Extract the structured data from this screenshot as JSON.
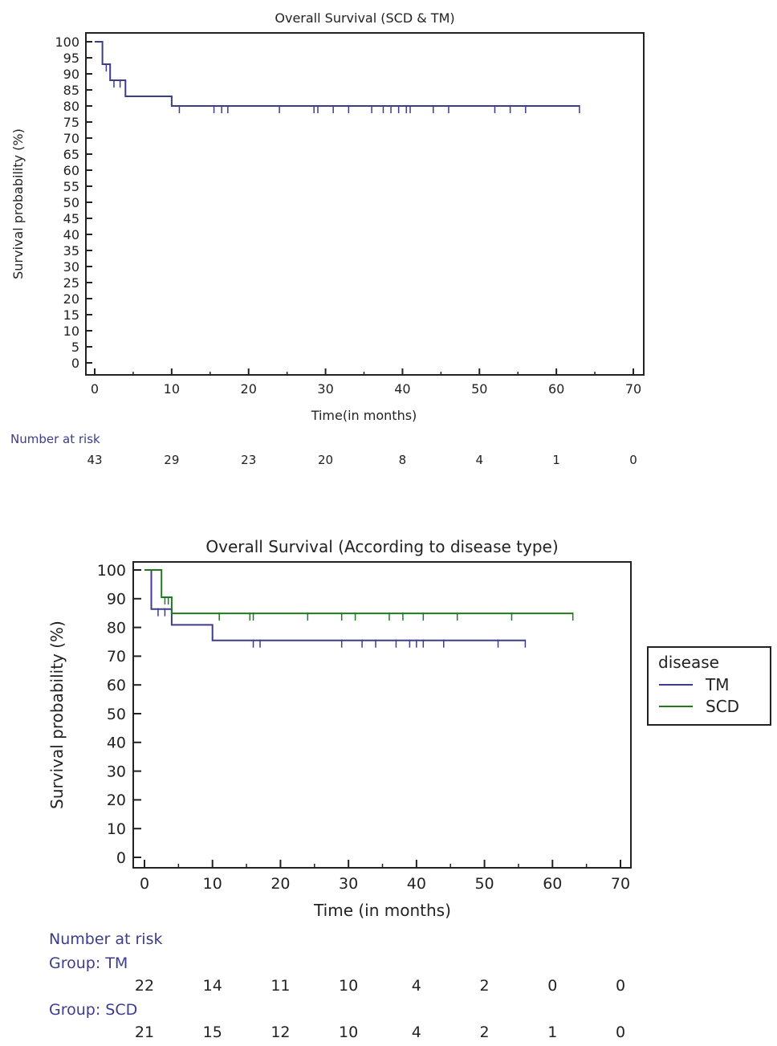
{
  "chart_data": [
    {
      "type": "line",
      "chart_kind": "kaplan-meier",
      "title": "Overall Survival (SCD & TM)",
      "xlabel": "Time(in months)",
      "ylabel": "Survival probability (%)",
      "xlim": [
        0,
        70
      ],
      "ylim": [
        0,
        100
      ],
      "x_ticks": [
        0,
        10,
        20,
        30,
        40,
        50,
        60,
        70
      ],
      "y_ticks": [
        0,
        5,
        10,
        15,
        20,
        25,
        30,
        35,
        40,
        45,
        50,
        55,
        60,
        65,
        70,
        75,
        80,
        85,
        90,
        95,
        100
      ],
      "grid": false,
      "series": [
        {
          "color": "#3c3c8c",
          "steps": [
            [
              0,
              100
            ],
            [
              1,
              100
            ],
            [
              1,
              93
            ],
            [
              2,
              93
            ],
            [
              2,
              88
            ],
            [
              4,
              88
            ],
            [
              4,
              83
            ],
            [
              10,
              83
            ],
            [
              10,
              80
            ],
            [
              63,
              80
            ]
          ],
          "censored": [
            [
              1.5,
              93
            ],
            [
              2.5,
              88
            ],
            [
              3.3,
              88
            ],
            [
              11,
              80
            ],
            [
              15.5,
              80
            ],
            [
              16.5,
              80
            ],
            [
              17.3,
              80
            ],
            [
              24,
              80
            ],
            [
              28.5,
              80
            ],
            [
              29,
              80
            ],
            [
              31,
              80
            ],
            [
              33,
              80
            ],
            [
              36,
              80
            ],
            [
              37.5,
              80
            ],
            [
              38.5,
              80
            ],
            [
              39.5,
              80
            ],
            [
              40.5,
              80
            ],
            [
              41,
              80
            ],
            [
              44,
              80
            ],
            [
              46,
              80
            ],
            [
              52,
              80
            ],
            [
              54,
              80
            ],
            [
              56,
              80
            ],
            [
              63,
              80
            ]
          ]
        }
      ],
      "risk_table": {
        "title": "Number at risk",
        "times": [
          0,
          10,
          20,
          30,
          40,
          50,
          60,
          70
        ],
        "rows": [
          {
            "label": "",
            "values": [
              "43",
              "29",
              "23",
              "20",
              "8",
              "4",
              "1",
              "0"
            ]
          }
        ]
      }
    },
    {
      "type": "line",
      "chart_kind": "kaplan-meier",
      "title": "Overall Survival (According to disease type)",
      "xlabel": "Time (in months)",
      "ylabel": "Survival probability (%)",
      "xlim": [
        0,
        70
      ],
      "ylim": [
        0,
        100
      ],
      "x_ticks": [
        0,
        10,
        20,
        30,
        40,
        50,
        60,
        70
      ],
      "y_ticks": [
        0,
        10,
        20,
        30,
        40,
        50,
        60,
        70,
        80,
        90,
        100
      ],
      "grid": false,
      "legend": {
        "title": "disease",
        "position": "right"
      },
      "series": [
        {
          "name": "TM",
          "color": "#3c3c8c",
          "steps": [
            [
              0,
              100
            ],
            [
              1,
              100
            ],
            [
              1,
              86.4
            ],
            [
              4,
              86.4
            ],
            [
              4,
              80.9
            ],
            [
              10,
              80.9
            ],
            [
              10,
              75.5
            ],
            [
              56,
              75.5
            ]
          ],
          "censored": [
            [
              2,
              86.4
            ],
            [
              3,
              86.4
            ],
            [
              16,
              75.5
            ],
            [
              17,
              75.5
            ],
            [
              29,
              75.5
            ],
            [
              32,
              75.5
            ],
            [
              34,
              75.5
            ],
            [
              37,
              75.5
            ],
            [
              39,
              75.5
            ],
            [
              40,
              75.5
            ],
            [
              41,
              75.5
            ],
            [
              44,
              75.5
            ],
            [
              52,
              75.5
            ],
            [
              56,
              75.5
            ]
          ]
        },
        {
          "name": "SCD",
          "color": "#1e7c1e",
          "steps": [
            [
              0,
              100
            ],
            [
              2.5,
              100
            ],
            [
              2.5,
              90.5
            ],
            [
              4,
              90.5
            ],
            [
              4,
              84.9
            ],
            [
              63,
              84.9
            ]
          ],
          "censored": [
            [
              3,
              90.5
            ],
            [
              3.5,
              90.5
            ],
            [
              11,
              84.9
            ],
            [
              15.5,
              84.9
            ],
            [
              16,
              84.9
            ],
            [
              24,
              84.9
            ],
            [
              29,
              84.9
            ],
            [
              31,
              84.9
            ],
            [
              36,
              84.9
            ],
            [
              38,
              84.9
            ],
            [
              41,
              84.9
            ],
            [
              46,
              84.9
            ],
            [
              54,
              84.9
            ],
            [
              63,
              84.9
            ]
          ]
        }
      ],
      "risk_table": {
        "title": "Number at risk",
        "times": [
          0,
          10,
          20,
          30,
          40,
          50,
          60,
          70
        ],
        "rows": [
          {
            "label": "Group: TM",
            "values": [
              "22",
              "14",
              "11",
              "10",
              "4",
              "2",
              "0",
              "0"
            ]
          },
          {
            "label": "Group: SCD",
            "values": [
              "21",
              "15",
              "12",
              "10",
              "4",
              "2",
              "1",
              "0"
            ]
          }
        ]
      }
    }
  ]
}
